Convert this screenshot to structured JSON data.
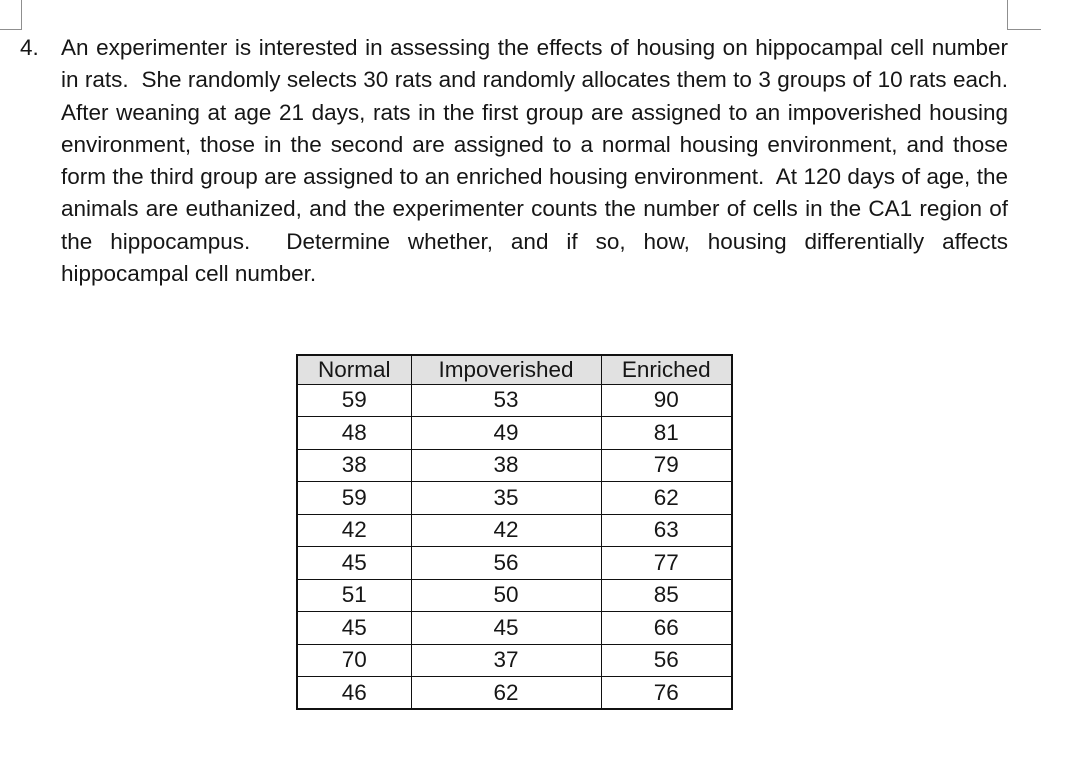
{
  "page": {
    "background": "#ffffff",
    "text_color": "#161616",
    "corner_mark_color": "#8f8f8f"
  },
  "problem": {
    "number": "4.",
    "text": "An experimenter is interested in assessing the effects of housing on hippocampal cell number in rats.  She randomly selects 30 rats and randomly allocates them to 3 groups of 10 rats each.  After weaning at age 21 days, rats in the first group are assigned to an impoverished housing environment, those in the second are assigned to a normal housing environment, and those form the third group are assigned to an enriched housing environment.  At 120 days of age, the animals are euthanized, and the experimenter counts the number of cells in the CA1 region of the hippocampus.  Determine whether, and if so, how, housing differentially affects hippocampal cell number."
  },
  "table": {
    "headers": [
      "Normal",
      "Impoverished",
      "Enriched"
    ],
    "rows": [
      [
        "59",
        "53",
        "90"
      ],
      [
        "48",
        "49",
        "81"
      ],
      [
        "38",
        "38",
        "79"
      ],
      [
        "59",
        "35",
        "62"
      ],
      [
        "42",
        "42",
        "63"
      ],
      [
        "45",
        "56",
        "77"
      ],
      [
        "51",
        "50",
        "85"
      ],
      [
        "45",
        "45",
        "66"
      ],
      [
        "70",
        "37",
        "56"
      ],
      [
        "46",
        "62",
        "76"
      ]
    ],
    "header_bg": "#e1e1e1",
    "border_color": "#111111"
  }
}
